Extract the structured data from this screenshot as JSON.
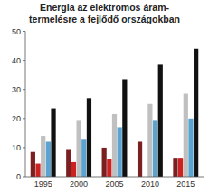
{
  "chart_data": {
    "type": "bar",
    "title": "Energia az elektromos áram-\ntermelésre a fejlődő országokban",
    "categories": [
      "1995",
      "2000",
      "2005",
      "2010",
      "2015"
    ],
    "series": [
      {
        "color": "#7B2020",
        "values": [
          8.5,
          9.5,
          10.0,
          12.0,
          6.5
        ]
      },
      {
        "color": "#CC2222",
        "values": [
          4.5,
          5.0,
          6.0,
          0.0,
          6.5
        ]
      },
      {
        "color": "#C0C0C0",
        "values": [
          14.0,
          19.5,
          21.5,
          25.0,
          28.5
        ]
      },
      {
        "color": "#5BA3D0",
        "values": [
          12.0,
          13.0,
          17.0,
          19.5,
          20.0
        ]
      },
      {
        "color": "#111111",
        "values": [
          23.5,
          27.0,
          33.5,
          38.5,
          44.0
        ]
      }
    ],
    "ylim": [
      0,
      50
    ],
    "yticks": [
      0,
      10,
      20,
      30,
      40,
      50
    ],
    "grid": false
  }
}
